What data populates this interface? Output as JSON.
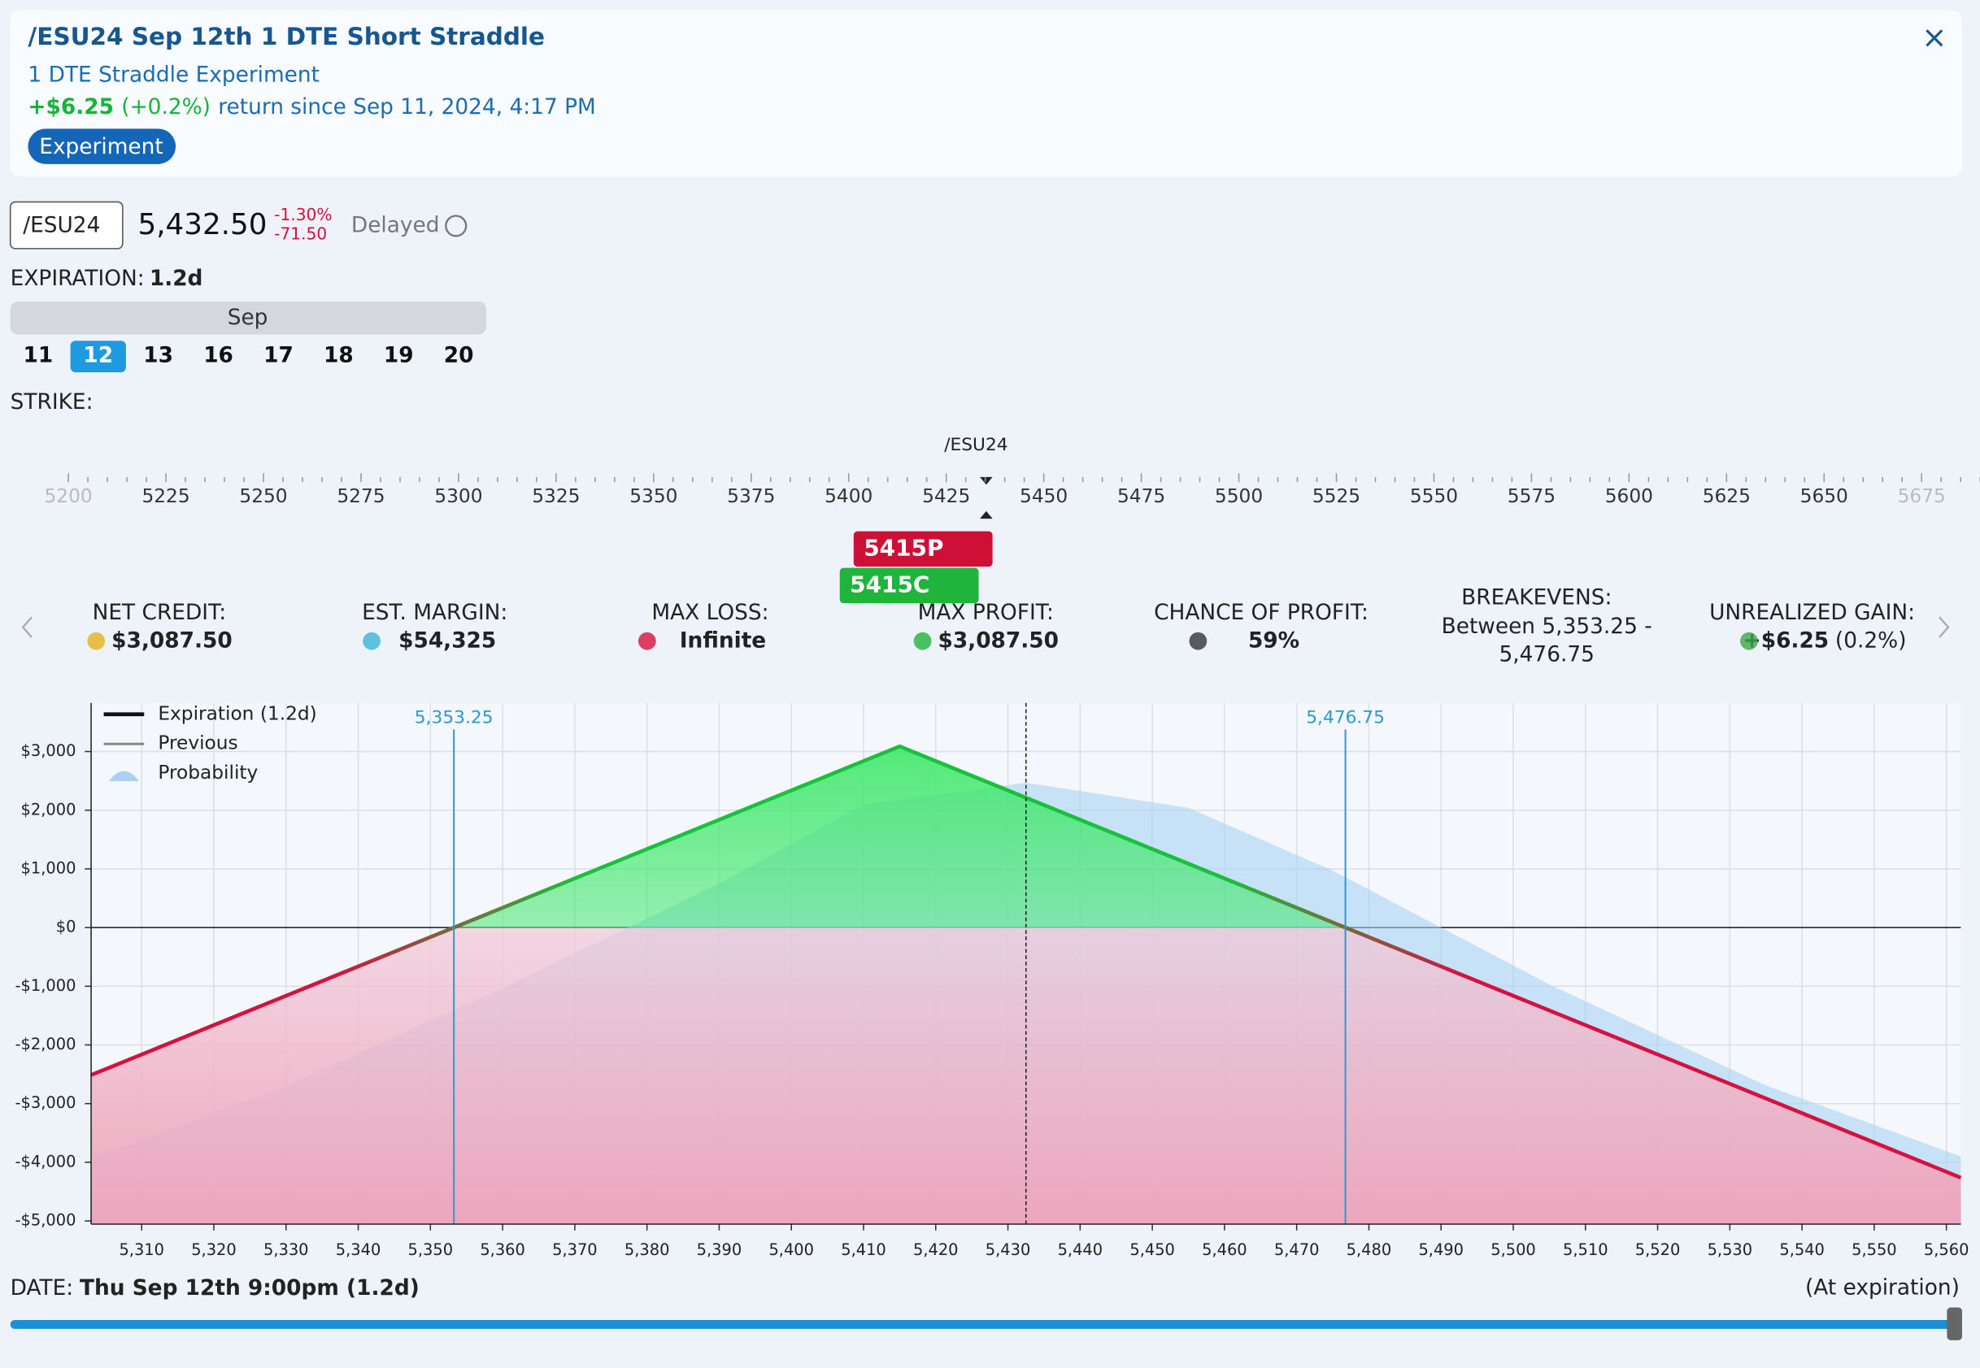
{
  "header": {
    "title": "/ESU24 Sep 12th 1 DTE Short Straddle",
    "subtitle": "1 DTE Straddle Experiment",
    "return_value": "+$6.25",
    "return_pct": "(+0.2%)",
    "return_text": "return since Sep 11, 2024, 4:17 PM",
    "tag": "Experiment",
    "close": "×"
  },
  "quote": {
    "symbol": "/ESU24",
    "price": "5,432.50",
    "change_pct": "-1.30%",
    "change": "-71.50",
    "status": "Delayed"
  },
  "expiration": {
    "label": "EXPIRATION:",
    "value": "1.2d",
    "month": "Sep",
    "days": [
      "11",
      "12",
      "13",
      "16",
      "17",
      "18",
      "19",
      "20"
    ],
    "selected": "12"
  },
  "strike": {
    "label": "STRIKE:",
    "underlying": "/ESU24",
    "strikes": [
      "5200",
      "5225",
      "5250",
      "5275",
      "5300",
      "5325",
      "5350",
      "5375",
      "5400",
      "5425",
      "5450",
      "5475",
      "5500",
      "5525",
      "5550",
      "5575",
      "5600",
      "5625",
      "5650",
      "5675"
    ],
    "legs": [
      "5415P",
      "5415C"
    ]
  },
  "stats": [
    {
      "label": "NET CREDIT:",
      "value": "$3,087.50"
    },
    {
      "label": "EST. MARGIN:",
      "value": "$54,325"
    },
    {
      "label": "MAX LOSS:",
      "value": "Infinite"
    },
    {
      "label": "MAX PROFIT:",
      "value": "$3,087.50"
    },
    {
      "label": "CHANCE OF PROFIT:",
      "value": "59%"
    },
    {
      "label": "BREAKEVENS:",
      "value_lines": [
        "Between 5,353.25 -",
        "5,476.75"
      ]
    },
    {
      "label": "UNREALIZED GAIN:",
      "value": "+$6.25",
      "note": "(0.2%)"
    }
  ],
  "chart_data": {
    "type": "line",
    "xlim": [
      5303,
      5562
    ],
    "ylim": [
      -5054,
      3828
    ],
    "xticks": [
      {
        "value": 5310,
        "label": "5,310"
      },
      {
        "value": 5320,
        "label": "5,320"
      },
      {
        "value": 5330,
        "label": "5,330"
      },
      {
        "value": 5340,
        "label": "5,340"
      },
      {
        "value": 5350,
        "label": "5,350"
      },
      {
        "value": 5360,
        "label": "5,360"
      },
      {
        "value": 5370,
        "label": "5,370"
      },
      {
        "value": 5380,
        "label": "5,380"
      },
      {
        "value": 5390,
        "label": "5,390"
      },
      {
        "value": 5400,
        "label": "5,400"
      },
      {
        "value": 5410,
        "label": "5,410"
      },
      {
        "value": 5420,
        "label": "5,420"
      },
      {
        "value": 5430,
        "label": "5,430"
      },
      {
        "value": 5440,
        "label": "5,440"
      },
      {
        "value": 5450,
        "label": "5,450"
      },
      {
        "value": 5460,
        "label": "5,460"
      },
      {
        "value": 5470,
        "label": "5,470"
      },
      {
        "value": 5480,
        "label": "5,480"
      },
      {
        "value": 5490,
        "label": "5,490"
      },
      {
        "value": 5500,
        "label": "5,500"
      },
      {
        "value": 5510,
        "label": "5,510"
      },
      {
        "value": 5520,
        "label": "5,520"
      },
      {
        "value": 5530,
        "label": "5,530"
      },
      {
        "value": 5540,
        "label": "5,540"
      },
      {
        "value": 5550,
        "label": "5,550"
      },
      {
        "value": 5560,
        "label": "5,560"
      }
    ],
    "yticks": [
      {
        "value": -5000,
        "label": "-$5,000"
      },
      {
        "value": -4000,
        "label": "-$4,000"
      },
      {
        "value": -3000,
        "label": "-$3,000"
      },
      {
        "value": -2000,
        "label": "-$2,000"
      },
      {
        "value": -1000,
        "label": "-$1,000"
      },
      {
        "value": 0,
        "label": "$0"
      },
      {
        "value": 1000,
        "label": "$1,000"
      },
      {
        "value": 2000,
        "label": "$2,000"
      },
      {
        "value": 3000,
        "label": "$3,000"
      }
    ],
    "grid": true,
    "series": [
      {
        "name": "Expiration (1.2d)",
        "color": "#16c23a",
        "loss_color": "#d6113f",
        "x": [
          5303,
          5415,
          5562
        ],
        "values": [
          -2512.5,
          3087.5,
          -4262.5
        ]
      },
      {
        "name": "Previous",
        "color": "#888888",
        "x": [],
        "values": []
      },
      {
        "name": "Probability",
        "color": "#a9d2f2",
        "x": [
          5303,
          5330,
          5360,
          5390,
          5410,
          5432.5,
          5455,
          5475,
          5505,
          5535,
          5562
        ],
        "values": [
          -3935,
          -2700,
          -1030,
          750,
          2100,
          2470,
          2040,
          970,
          -970,
          -2690,
          -3900
        ]
      }
    ],
    "breakevens": [
      {
        "value": 5353.25,
        "label": "5,353.25"
      },
      {
        "value": 5476.75,
        "label": "5,476.75"
      }
    ],
    "current_price": 5432.5
  },
  "date": {
    "label": "DATE:",
    "value": "Thu Sep 12th 9:00pm (1.2d)",
    "note": "(At expiration)"
  }
}
